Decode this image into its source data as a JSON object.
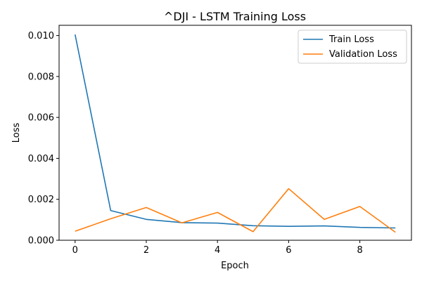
{
  "chart_data": {
    "type": "line",
    "title": "^DJI - LSTM Training Loss",
    "xlabel": "Epoch",
    "ylabel": "Loss",
    "x": [
      0,
      1,
      2,
      3,
      4,
      5,
      6,
      7,
      8,
      9
    ],
    "xlim": [
      -0.45,
      9.45
    ],
    "ylim": [
      0,
      0.0105
    ],
    "xticks": [
      0,
      2,
      4,
      6,
      8
    ],
    "xtick_labels": [
      "0",
      "2",
      "4",
      "6",
      "8"
    ],
    "yticks": [
      0,
      0.002,
      0.004,
      0.006,
      0.008,
      0.01
    ],
    "ytick_labels": [
      "0.000",
      "0.002",
      "0.004",
      "0.006",
      "0.008",
      "0.010"
    ],
    "grid": false,
    "legend_position": "top-right",
    "series": [
      {
        "name": "Train Loss",
        "color": "#1f77b4",
        "values": [
          0.01005,
          0.00145,
          0.00102,
          0.00086,
          0.00084,
          0.00071,
          0.00068,
          0.0007,
          0.00063,
          0.0006
        ]
      },
      {
        "name": "Validation Loss",
        "color": "#ff7f0e",
        "values": [
          0.00044,
          0.00105,
          0.0016,
          0.00085,
          0.00136,
          0.00042,
          0.00252,
          0.00102,
          0.00165,
          0.00039
        ]
      }
    ]
  }
}
